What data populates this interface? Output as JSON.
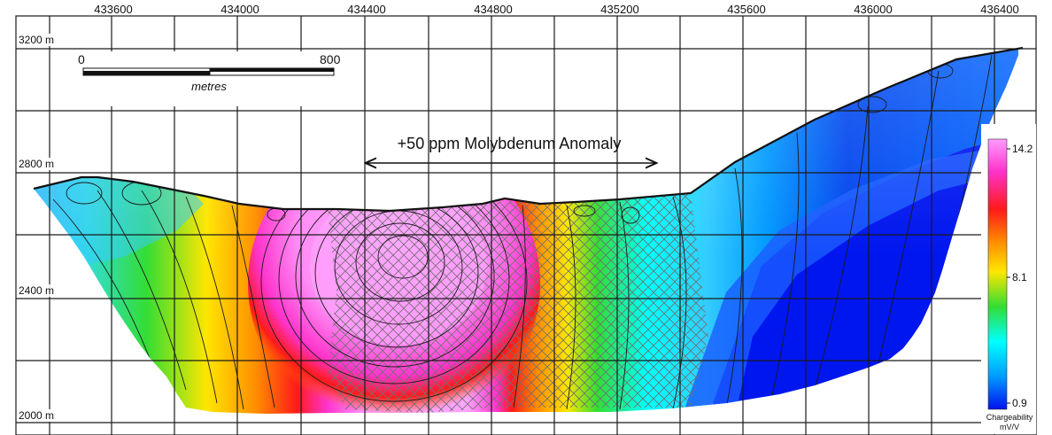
{
  "x_axis": {
    "ticks": [
      "433600",
      "434000",
      "434400",
      "434800",
      "435200",
      "435600",
      "436000",
      "436400"
    ]
  },
  "y_axis": {
    "ticks": [
      "3200 m",
      "2800 m",
      "2400 m",
      "2000 m"
    ]
  },
  "scale_bar": {
    "start": "0",
    "end": "800",
    "unit": "metres"
  },
  "annotation": {
    "text": "+50 ppm Molybdenum Anomaly"
  },
  "colorbar": {
    "max_label": "14.2",
    "mid_label": "8.1",
    "min_label": "0.9",
    "title": "Chargeability",
    "unit": "mV/V",
    "stops": [
      "#ff9bff",
      "#ff33cc",
      "#ff1a1a",
      "#ff8c00",
      "#ffe600",
      "#33dd33",
      "#00ffff",
      "#0099ff",
      "#0011ee"
    ]
  },
  "colors": {
    "grid": "#1a1a1a",
    "hatch": "#6f6f6f"
  },
  "chart_data": {
    "type": "heatmap",
    "x_ticks": [
      433600,
      434000,
      434400,
      434800,
      435200,
      435600,
      436000,
      436400
    ],
    "y_ticks": [
      3200,
      2800,
      2400,
      2000
    ],
    "value_range": [
      0.9,
      14.2
    ],
    "colorbar_ticks": [
      14.2,
      8.1,
      0.9
    ],
    "annotation": "+50 ppm Molybdenum Anomaly",
    "legend_position": "right"
  }
}
